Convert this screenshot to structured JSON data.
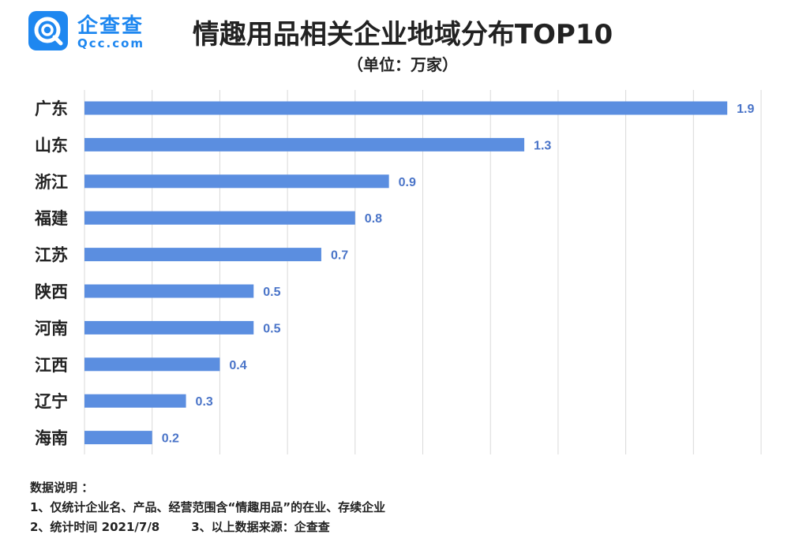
{
  "logo": {
    "cn": "企查查",
    "en": "Qcc.com",
    "icon": "qcc-logo-icon",
    "color": "#1e87f0"
  },
  "chart_data": {
    "type": "bar",
    "orientation": "horizontal",
    "title": "情趣用品相关企业地域分布TOP10",
    "subtitle": "（单位：万家）",
    "categories": [
      "广东",
      "山东",
      "浙江",
      "福建",
      "江苏",
      "陕西",
      "河南",
      "江西",
      "辽宁",
      "海南"
    ],
    "values": [
      1.9,
      1.3,
      0.9,
      0.8,
      0.7,
      0.5,
      0.5,
      0.4,
      0.3,
      0.2
    ],
    "value_labels": [
      "1.9",
      "1.3",
      "0.9",
      "0.8",
      "0.7",
      "0.5",
      "0.5",
      "0.4",
      "0.3",
      "0.2"
    ],
    "xlim": [
      0,
      2.0
    ],
    "grid": "vertical",
    "bar_color": "#5b8ee0",
    "label_color": "#4a74c8"
  },
  "notes": {
    "heading": "数据说明 ：",
    "line1": "1、仅统计企业名、产品、经营范围含“情趣用品”的在业、存续企业",
    "line2a": "2、统计时间 2021/7/8",
    "line2b": "3、以上数据来源：企查查"
  }
}
